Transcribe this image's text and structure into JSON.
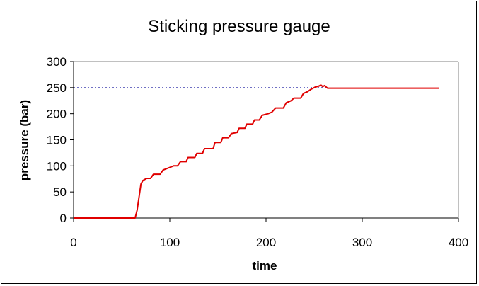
{
  "chart_data": {
    "type": "line",
    "title": "Sticking pressure gauge",
    "xlabel": "time",
    "ylabel": "pressure (bar)",
    "xlim": [
      0,
      400
    ],
    "ylim": [
      0,
      300
    ],
    "x_ticks": [
      "0",
      "100",
      "200",
      "300",
      "400"
    ],
    "y_ticks": [
      "0",
      "50",
      "100",
      "150",
      "200",
      "250",
      "300"
    ],
    "grid": false,
    "legend": "none",
    "reference_line": {
      "y": 250,
      "x_range": [
        0,
        262
      ],
      "style": "dotted",
      "color": "#1a1aa0"
    },
    "series": [
      {
        "color": "#e00000",
        "points": [
          [
            0,
            0
          ],
          [
            64,
            0
          ],
          [
            66,
            15
          ],
          [
            68,
            40
          ],
          [
            70,
            65
          ],
          [
            72,
            72
          ],
          [
            74,
            74
          ],
          [
            76,
            76
          ],
          [
            80,
            76
          ],
          [
            83,
            84
          ],
          [
            90,
            84
          ],
          [
            93,
            92
          ],
          [
            100,
            97
          ],
          [
            104,
            100
          ],
          [
            108,
            100
          ],
          [
            111,
            108
          ],
          [
            117,
            108
          ],
          [
            119,
            116
          ],
          [
            126,
            116
          ],
          [
            128,
            124
          ],
          [
            134,
            124
          ],
          [
            136,
            133
          ],
          [
            145,
            133
          ],
          [
            147,
            145
          ],
          [
            153,
            145
          ],
          [
            155,
            154
          ],
          [
            161,
            154
          ],
          [
            164,
            162
          ],
          [
            170,
            164
          ],
          [
            172,
            172
          ],
          [
            178,
            172
          ],
          [
            180,
            180
          ],
          [
            186,
            180
          ],
          [
            188,
            188
          ],
          [
            193,
            188
          ],
          [
            196,
            197
          ],
          [
            202,
            200
          ],
          [
            206,
            203
          ],
          [
            210,
            211
          ],
          [
            218,
            211
          ],
          [
            221,
            221
          ],
          [
            226,
            225
          ],
          [
            229,
            230
          ],
          [
            236,
            230
          ],
          [
            239,
            239
          ],
          [
            243,
            242
          ],
          [
            247,
            247
          ],
          [
            251,
            251
          ],
          [
            255,
            253
          ],
          [
            257,
            255
          ],
          [
            259,
            252
          ],
          [
            261,
            254
          ],
          [
            262,
            252
          ],
          [
            264,
            249
          ],
          [
            290,
            249
          ],
          [
            330,
            249
          ],
          [
            380,
            249
          ]
        ]
      }
    ]
  }
}
